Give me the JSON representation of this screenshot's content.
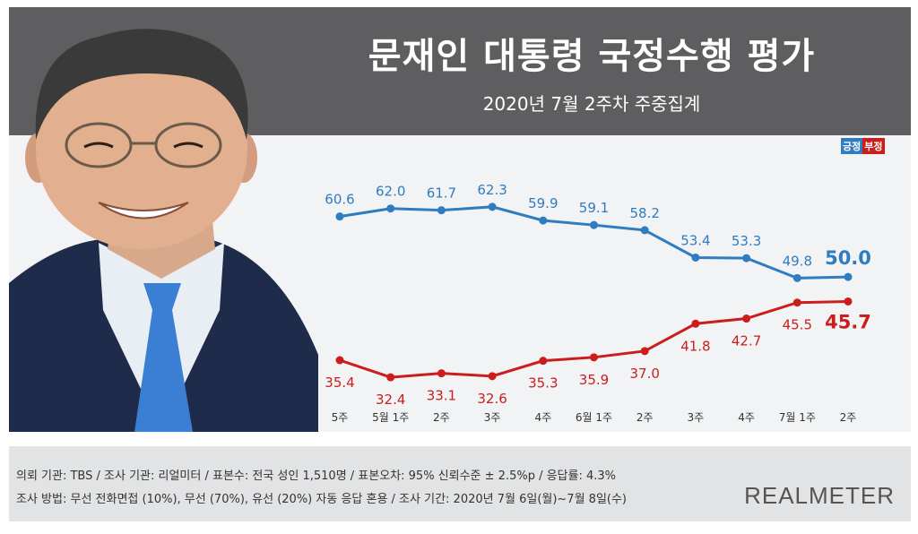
{
  "header": {
    "title": "문재인 대통령 국정수행 평가",
    "subtitle": "2020년 7월 2주차 주중집계"
  },
  "legend": {
    "positive": "긍정",
    "negative": "부정"
  },
  "colors": {
    "positive": "#2f7cc1",
    "negative": "#cc1d1d"
  },
  "chart_data": {
    "type": "line",
    "categories": [
      "5주",
      "5월 1주",
      "2주",
      "3주",
      "4주",
      "6월 1주",
      "2주",
      "3주",
      "4주",
      "7월 1주",
      "2주"
    ],
    "series": [
      {
        "name": "긍정",
        "values": [
          60.6,
          62.0,
          61.7,
          62.3,
          59.9,
          59.1,
          58.2,
          53.4,
          53.3,
          49.8,
          50.0
        ],
        "labels": [
          "60.6",
          "62.0",
          "61.7",
          "62.3",
          "59.9",
          "59.1",
          "58.2",
          "53.4",
          "53.3",
          "49.8",
          "50.0"
        ]
      },
      {
        "name": "부정",
        "values": [
          35.4,
          32.4,
          33.1,
          32.6,
          35.3,
          35.9,
          37.0,
          41.8,
          42.7,
          45.5,
          45.7
        ],
        "labels": [
          "35.4",
          "32.4",
          "33.1",
          "32.6",
          "35.3",
          "35.9",
          "37.0",
          "41.8",
          "42.7",
          "45.5",
          "45.7"
        ]
      }
    ],
    "ylim": [
      20,
      75
    ],
    "legend_position": "top-right",
    "grid": false
  },
  "footer": {
    "line1": "의뢰 기관: TBS / 조사 기관: 리얼미터 / 표본수: 전국 성인 1,510명 / 표본오차: 95% 신뢰수준 ± 2.5%p / 응답률: 4.3%",
    "line2": "조사 방법: 무선 전화면접 (10%), 무선 (70%), 유선 (20%) 자동 응답 혼용 / 조사 기간: 2020년 7월 6일(월)~7월 8일(수)",
    "brand": "REALMETER"
  }
}
